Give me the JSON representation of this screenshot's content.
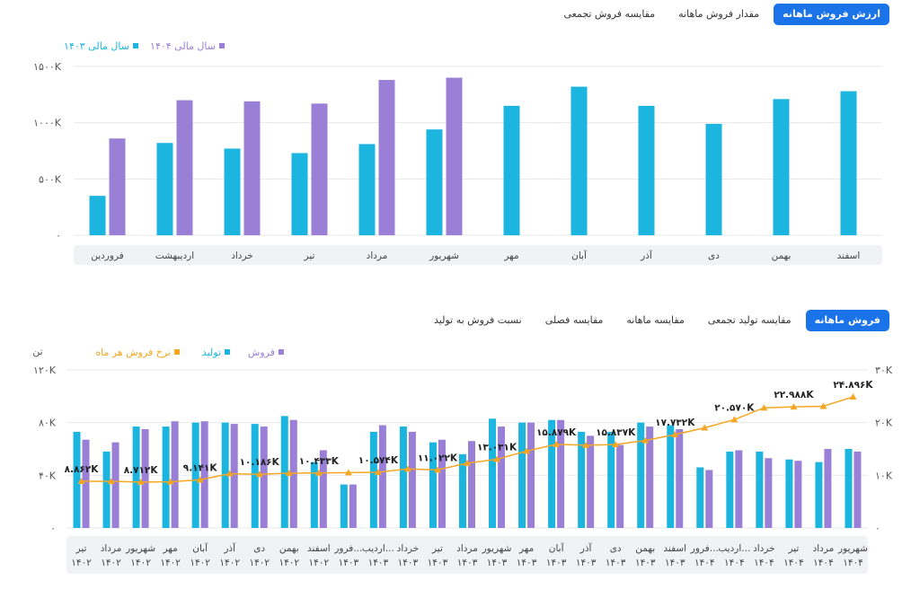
{
  "top_tabs": [
    {
      "label": "ارزش فروش ماهانه",
      "active": true
    },
    {
      "label": "مقدار فروش ماهانه",
      "active": false
    },
    {
      "label": "مقایسه فروش تجمعی",
      "active": false
    }
  ],
  "bottom_tabs": [
    {
      "label": "فروش ماهانه",
      "active": true
    },
    {
      "label": "مقایسه تولید تجمعی",
      "active": false
    },
    {
      "label": "مقایسه ماهانه",
      "active": false
    },
    {
      "label": "مقایسه فصلی",
      "active": false
    },
    {
      "label": "نسبت فروش به تولید",
      "active": false
    }
  ],
  "colors": {
    "cyan": "#1cb5e0",
    "purple": "#9a7fd6",
    "orange": "#f5a623",
    "accent": "#1a73e8"
  },
  "chart_data": [
    {
      "type": "bar",
      "legend_position": "top-left",
      "ylim": [
        0,
        1500
      ],
      "y_ticks": [
        "۰",
        "۵۰۰K",
        "۱۰۰۰K",
        "۱۵۰۰K"
      ],
      "categories": [
        "فروردین",
        "اردیبهشت",
        "خرداد",
        "تیر",
        "مرداد",
        "شهریور",
        "مهر",
        "آبان",
        "آذر",
        "دی",
        "بهمن",
        "اسفند"
      ],
      "series": [
        {
          "name": "سال مالی ۱۴۰۳",
          "color": "#1cb5e0",
          "values": [
            350,
            820,
            770,
            730,
            810,
            940,
            1150,
            1320,
            1150,
            990,
            1210,
            1280
          ]
        },
        {
          "name": "سال مالی ۱۴۰۴",
          "color": "#9a7fd6",
          "values": [
            860,
            1200,
            1190,
            1170,
            1380,
            1400,
            null,
            null,
            null,
            null,
            null,
            null
          ]
        }
      ]
    },
    {
      "type": "bar",
      "legend_position": "top-left",
      "y_left_unit": "تن",
      "ylim_left": [
        0,
        120
      ],
      "y_left_ticks": [
        "۰",
        "۴۰K",
        "۸۰K",
        "۱۲۰K"
      ],
      "ylim_right": [
        0,
        30
      ],
      "y_right_ticks": [
        "۰",
        "۱۰K",
        "۲۰K",
        "۳۰K"
      ],
      "categories": [
        [
          "تیر",
          "۱۴۰۲"
        ],
        [
          "مرداد",
          "۱۴۰۲"
        ],
        [
          "شهریور",
          "۱۴۰۲"
        ],
        [
          "مهر",
          "۱۴۰۲"
        ],
        [
          "آبان",
          "۱۴۰۲"
        ],
        [
          "آذر",
          "۱۴۰۲"
        ],
        [
          "دی",
          "۱۴۰۲"
        ],
        [
          "بهمن",
          "۱۴۰۲"
        ],
        [
          "اسفند",
          "۱۴۰۲"
        ],
        [
          "فرور...",
          "۱۴۰۳"
        ],
        [
          "اردیب...",
          "۱۴۰۳"
        ],
        [
          "خرداد",
          "۱۴۰۳"
        ],
        [
          "تیر",
          "۱۴۰۳"
        ],
        [
          "مرداد",
          "۱۴۰۳"
        ],
        [
          "شهریور",
          "۱۴۰۳"
        ],
        [
          "مهر",
          "۱۴۰۳"
        ],
        [
          "آبان",
          "۱۴۰۳"
        ],
        [
          "آذر",
          "۱۴۰۳"
        ],
        [
          "دی",
          "۱۴۰۳"
        ],
        [
          "بهمن",
          "۱۴۰۳"
        ],
        [
          "اسفند",
          "۱۴۰۳"
        ],
        [
          "فرور...",
          "۱۴۰۴"
        ],
        [
          "اردیب...",
          "۱۴۰۴"
        ],
        [
          "خرداد",
          "۱۴۰۴"
        ],
        [
          "تیر",
          "۱۴۰۴"
        ],
        [
          "مرداد",
          "۱۴۰۴"
        ],
        [
          "شهریور",
          "۱۴۰۴"
        ]
      ],
      "series": [
        {
          "name": "تولید",
          "color": "#1cb5e0",
          "axis": "left",
          "values": [
            73,
            58,
            77,
            77,
            80,
            80,
            79,
            85,
            50,
            33,
            73,
            77,
            65,
            56,
            83,
            80,
            82,
            73,
            73,
            80,
            78,
            46,
            58,
            58,
            52,
            50,
            60
          ]
        },
        {
          "name": "فروش",
          "color": "#9a7fd6",
          "axis": "left",
          "values": [
            67,
            65,
            75,
            81,
            81,
            79,
            77,
            82,
            59,
            33,
            78,
            73,
            67,
            66,
            77,
            80,
            82,
            70,
            63,
            77,
            75,
            44,
            59,
            53,
            51,
            60,
            58
          ]
        },
        {
          "name": "نرخ فروش هر ماه",
          "color": "#f5a623",
          "axis": "right",
          "type": "line",
          "values": [
            8.862,
            8.85,
            8.712,
            8.75,
            9.141,
            10.3,
            10.186,
            10.4,
            10.433,
            10.5,
            10.574,
            11.2,
            11.022,
            12.3,
            13.031,
            14.6,
            15.879,
            15.7,
            15.837,
            16.6,
            17.732,
            19.0,
            20.57,
            22.8,
            22.988,
            23.1,
            24.896
          ]
        }
      ],
      "data_labels": [
        {
          "index": 0,
          "text": "۸.۸۶۲K"
        },
        {
          "index": 2,
          "text": "۸.۷۱۲K"
        },
        {
          "index": 4,
          "text": "۹.۱۴۱K"
        },
        {
          "index": 6,
          "text": "۱۰.۱۸۶K"
        },
        {
          "index": 8,
          "text": "۱۰.۴۳۳K"
        },
        {
          "index": 10,
          "text": "۱۰.۵۷۴K"
        },
        {
          "index": 12,
          "text": "۱۱.۰۲۲K"
        },
        {
          "index": 14,
          "text": "۱۳.۰۳۱K"
        },
        {
          "index": 16,
          "text": "۱۵.۸۷۹K"
        },
        {
          "index": 18,
          "text": "۱۵.۸۳۷K"
        },
        {
          "index": 20,
          "text": "۱۷.۷۳۲K"
        },
        {
          "index": 22,
          "text": "۲۰.۵۷۰K"
        },
        {
          "index": 24,
          "text": "۲۲.۹۸۸K"
        },
        {
          "index": 26,
          "text": "۲۴.۸۹۶K"
        }
      ]
    }
  ]
}
